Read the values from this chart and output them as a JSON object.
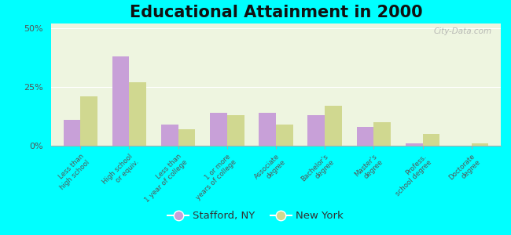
{
  "title": "Educational Attainment in 2000",
  "categories": [
    "Less than\nhigh school",
    "High school\nor equiv.",
    "Less than\n1 year of college",
    "1 or more\nyears of college",
    "Associate\ndegree",
    "Bachelor's\ndegree",
    "Master's\ndegree",
    "Profess.\nschool degree",
    "Doctorate\ndegree"
  ],
  "stafford_values": [
    11,
    38,
    9,
    14,
    14,
    13,
    8,
    1,
    0
  ],
  "ny_values": [
    21,
    27,
    7,
    13,
    9,
    17,
    10,
    5,
    1
  ],
  "stafford_color": "#c8a0d8",
  "ny_color": "#d0d890",
  "background_color": "#00ffff",
  "plot_bg": "#eef5e0",
  "title_fontsize": 15,
  "tick_fontsize": 6.2,
  "legend_fontsize": 9.5,
  "ylim": [
    0,
    52
  ],
  "yticks": [
    0,
    25,
    50
  ],
  "ytick_labels": [
    "0%",
    "25%",
    "50%"
  ],
  "watermark": "City-Data.com",
  "legend_stafford": "Stafford, NY",
  "legend_ny": "New York"
}
